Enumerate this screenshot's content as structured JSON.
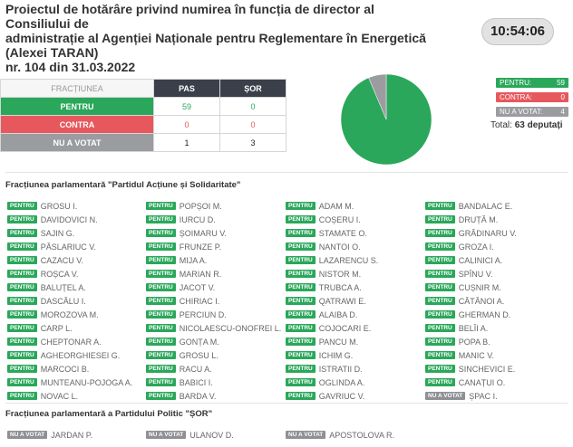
{
  "title_lines": [
    "Proiectul de hotărâre privind numirea în funcția de director al Consiliului de",
    "administrație al Agenției Naționale pentru Reglementare în Energetică",
    "(Alexei TARAN)",
    "nr. 104 din 31.03.2022"
  ],
  "clock": "10:54:06",
  "table": {
    "headers": [
      "FRACȚIUNEA",
      "PAS",
      "ȘOR"
    ],
    "rows": [
      {
        "label": "PENTRU",
        "pas": "59",
        "sor": "0"
      },
      {
        "label": "CONTRA",
        "pas": "0",
        "sor": "0"
      },
      {
        "label": "NU A VOTAT",
        "pas": "1",
        "sor": "3"
      }
    ]
  },
  "chart_data": {
    "type": "pie",
    "slices": [
      {
        "name": "PENTRU",
        "value": 59,
        "color": "#2aa75a"
      },
      {
        "name": "CONTRA",
        "value": 0,
        "color": "#e7585e"
      },
      {
        "name": "NU A VOTAT",
        "value": 4,
        "color": "#9a9ca0"
      }
    ]
  },
  "legend": [
    {
      "label": "PENTRU:",
      "value": "59"
    },
    {
      "label": "CONTRA:",
      "value": "0"
    },
    {
      "label": "NU A VOTAT:",
      "value": "4"
    }
  ],
  "total": {
    "prefix": "Total:",
    "value": "63 deputați"
  },
  "pas_section": {
    "title": "Fracțiunea parlamentară \"Partidul Acțiune și Solidaritate\"",
    "columns": [
      [
        {
          "vote": "PENTRU",
          "name": "GROSU I."
        },
        {
          "vote": "PENTRU",
          "name": "DAVIDOVICI N."
        },
        {
          "vote": "PENTRU",
          "name": "SAJIN G."
        },
        {
          "vote": "PENTRU",
          "name": "PĂSLARIUC V."
        },
        {
          "vote": "PENTRU",
          "name": "CAZACU V."
        },
        {
          "vote": "PENTRU",
          "name": "ROȘCA V."
        },
        {
          "vote": "PENTRU",
          "name": "BALUȚEL A."
        },
        {
          "vote": "PENTRU",
          "name": "DASCĂLU I."
        },
        {
          "vote": "PENTRU",
          "name": "MOROZOVA M."
        },
        {
          "vote": "PENTRU",
          "name": "CARP L."
        },
        {
          "vote": "PENTRU",
          "name": "CHEPTONAR A."
        },
        {
          "vote": "PENTRU",
          "name": "AGHEORGHIESEI G."
        },
        {
          "vote": "PENTRU",
          "name": "MARCOCI B."
        },
        {
          "vote": "PENTRU",
          "name": "MUNTEANU-POJOGA A."
        },
        {
          "vote": "PENTRU",
          "name": "NOVAC L."
        }
      ],
      [
        {
          "vote": "PENTRU",
          "name": "POPȘOI M."
        },
        {
          "vote": "PENTRU",
          "name": "IURCU D."
        },
        {
          "vote": "PENTRU",
          "name": "ȘOIMARU V."
        },
        {
          "vote": "PENTRU",
          "name": "FRUNZE P."
        },
        {
          "vote": "PENTRU",
          "name": "MIJA A."
        },
        {
          "vote": "PENTRU",
          "name": "MARIAN R."
        },
        {
          "vote": "PENTRU",
          "name": "JACOT V."
        },
        {
          "vote": "PENTRU",
          "name": "CHIRIAC I."
        },
        {
          "vote": "PENTRU",
          "name": "PERCIUN D."
        },
        {
          "vote": "PENTRU",
          "name": "NICOLAESCU-ONOFREI L."
        },
        {
          "vote": "PENTRU",
          "name": "GONȚA M."
        },
        {
          "vote": "PENTRU",
          "name": "GROSU L."
        },
        {
          "vote": "PENTRU",
          "name": "RACU A."
        },
        {
          "vote": "PENTRU",
          "name": "BABICI I."
        },
        {
          "vote": "PENTRU",
          "name": "BARDA V."
        }
      ],
      [
        {
          "vote": "PENTRU",
          "name": "ADAM M."
        },
        {
          "vote": "PENTRU",
          "name": "COȘERU I."
        },
        {
          "vote": "PENTRU",
          "name": "STAMATE O."
        },
        {
          "vote": "PENTRU",
          "name": "NANTOI O."
        },
        {
          "vote": "PENTRU",
          "name": "LAZARENCU S."
        },
        {
          "vote": "PENTRU",
          "name": "NISTOR M."
        },
        {
          "vote": "PENTRU",
          "name": "TRUBCA A."
        },
        {
          "vote": "PENTRU",
          "name": "QATRAWI E."
        },
        {
          "vote": "PENTRU",
          "name": "ALAIBA D."
        },
        {
          "vote": "PENTRU",
          "name": "COJOCARI E."
        },
        {
          "vote": "PENTRU",
          "name": "PANCU M."
        },
        {
          "vote": "PENTRU",
          "name": "ICHIM G."
        },
        {
          "vote": "PENTRU",
          "name": "ISTRATII D."
        },
        {
          "vote": "PENTRU",
          "name": "OGLINDA A."
        },
        {
          "vote": "PENTRU",
          "name": "GAVRIUC V."
        }
      ],
      [
        {
          "vote": "PENTRU",
          "name": "BANDALAC E."
        },
        {
          "vote": "PENTRU",
          "name": "DRUȚĂ M."
        },
        {
          "vote": "PENTRU",
          "name": "GRĂDINARU V."
        },
        {
          "vote": "PENTRU",
          "name": "GROZA I."
        },
        {
          "vote": "PENTRU",
          "name": "CALINICI A."
        },
        {
          "vote": "PENTRU",
          "name": "SPÎNU V."
        },
        {
          "vote": "PENTRU",
          "name": "CUȘNIR M."
        },
        {
          "vote": "PENTRU",
          "name": "CĂTĂNOI A."
        },
        {
          "vote": "PENTRU",
          "name": "GHERMAN D."
        },
        {
          "vote": "PENTRU",
          "name": "BELÎI A."
        },
        {
          "vote": "PENTRU",
          "name": "POPA B."
        },
        {
          "vote": "PENTRU",
          "name": "MANIC V."
        },
        {
          "vote": "PENTRU",
          "name": "SINCHEVICI E."
        },
        {
          "vote": "PENTRU",
          "name": "CANAȚUI O."
        },
        {
          "vote": "NU A VOTAT",
          "name": "ȘPAC I."
        }
      ]
    ]
  },
  "sor_section": {
    "title": "Fracțiunea parlamentară a Partidului Politic \"ȘOR\"",
    "members": [
      {
        "vote": "NU A VOTAT",
        "name": "JARDAN P."
      },
      {
        "vote": "NU A VOTAT",
        "name": "ULANOV D."
      },
      {
        "vote": "NU A VOTAT",
        "name": "APOSTOLOVA R."
      }
    ]
  }
}
